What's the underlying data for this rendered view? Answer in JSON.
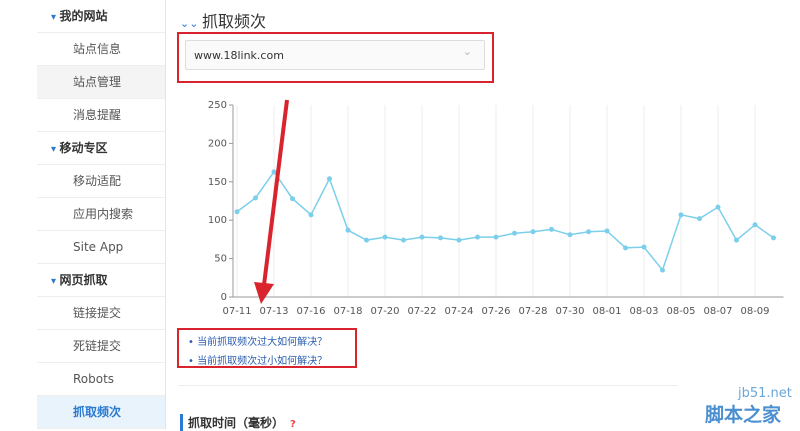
{
  "sidebar": {
    "sections": [
      {
        "title": "我的网站",
        "items": [
          "站点信息",
          "站点管理",
          "消息提醒"
        ]
      },
      {
        "title": "移动专区",
        "items": [
          "移动适配",
          "应用内搜索",
          "Site App"
        ]
      },
      {
        "title": "网页抓取",
        "items": [
          "链接提交",
          "死链提交",
          "Robots",
          "抓取频次"
        ]
      }
    ]
  },
  "header": {
    "title": "抓取频次"
  },
  "dropdown": {
    "value": "www.18link.com"
  },
  "chart_data": {
    "type": "line",
    "categories": [
      "07-11",
      null,
      "07-13",
      null,
      "07-16",
      null,
      "07-18",
      null,
      "07-20",
      null,
      "07-22",
      null,
      "07-24",
      null,
      "07-26",
      null,
      "07-28",
      null,
      "07-30",
      null,
      "08-01",
      null,
      "08-03",
      null,
      "08-05",
      null,
      "08-07",
      null,
      "08-09",
      null
    ],
    "values": [
      111,
      129,
      163,
      128,
      107,
      154,
      87,
      74,
      78,
      74,
      78,
      77,
      74,
      78,
      78,
      83,
      85,
      88,
      81,
      85,
      86,
      64,
      65,
      35,
      107,
      102,
      117,
      74,
      94,
      77
    ],
    "color": "#7ccfeb",
    "ylim": [
      0,
      250
    ],
    "yticks": [
      0,
      50,
      100,
      150,
      200,
      250
    ],
    "grid": true
  },
  "links": [
    "当前抓取频次过大如何解决？",
    "当前抓取频次过小如何解决？"
  ],
  "section": {
    "title": "抓取时间（毫秒）",
    "help": "?"
  },
  "watermark": {
    "site": "jb51.net",
    "name": "脚本之家"
  }
}
